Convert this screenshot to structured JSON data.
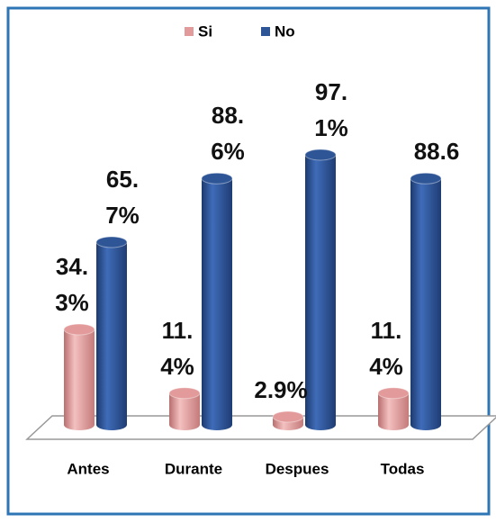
{
  "chart_data": {
    "type": "bar3d",
    "categories": [
      "Antes",
      "Durante",
      "Despues",
      "Todas"
    ],
    "series": [
      {
        "name": "Si",
        "color": "#e39a9a",
        "values": [
          34.3,
          11.4,
          2.9,
          11.4
        ],
        "value_labels": [
          "34.3%",
          "11.4%",
          "2.9%",
          "11.4%"
        ]
      },
      {
        "name": "No",
        "color": "#2e5596",
        "values": [
          65.7,
          88.6,
          97.1,
          88.6
        ],
        "value_labels": [
          "65.7%",
          "88.6%",
          "97.1%",
          "88.6"
        ]
      }
    ],
    "legend": "top"
  }
}
